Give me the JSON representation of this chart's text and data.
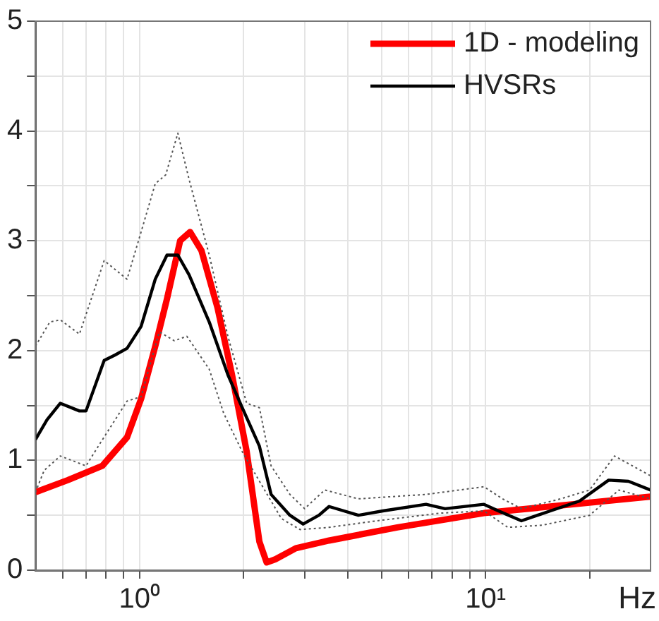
{
  "chart_data": {
    "type": "line",
    "xlabel": "Hz",
    "log": "x",
    "xlim": [
      0.5,
      30
    ],
    "xticks": [
      {
        "value": 0.6,
        "label": null
      },
      {
        "value": 0.7,
        "label": null
      },
      {
        "value": 0.8,
        "label": null
      },
      {
        "value": 0.9,
        "label": null
      },
      {
        "value": 1,
        "label": "10⁰"
      },
      {
        "value": 2,
        "label": null
      },
      {
        "value": 3,
        "label": null
      },
      {
        "value": 4,
        "label": null
      },
      {
        "value": 5,
        "label": null
      },
      {
        "value": 6,
        "label": null
      },
      {
        "value": 7,
        "label": null
      },
      {
        "value": 8,
        "label": null
      },
      {
        "value": 9,
        "label": null
      },
      {
        "value": 10,
        "label": "10¹"
      },
      {
        "value": 20,
        "label": null
      }
    ],
    "ylim": [
      0,
      5
    ],
    "yticks": [
      0,
      {
        "value": 0.5,
        "label": null
      },
      1,
      {
        "value": 1.5,
        "label": null
      },
      2,
      {
        "value": 2.5,
        "label": null
      },
      3,
      {
        "value": 3.5,
        "label": null
      },
      4,
      {
        "value": 4.5,
        "label": null
      },
      5
    ],
    "grid": true,
    "legend": "top right",
    "marker": "none",
    "series": [
      {
        "name": "1D - modeling",
        "color": "#ff0000",
        "x": [
          0.5,
          0.62,
          0.78,
          0.92,
          1.01,
          1.11,
          1.2,
          1.31,
          1.4,
          1.51,
          1.68,
          1.85,
          2.04,
          2.22,
          2.33,
          2.47,
          2.83,
          3.53,
          5.56,
          9.9,
          30
        ],
        "values": [
          0.71,
          0.82,
          0.95,
          1.21,
          1.56,
          2.04,
          2.47,
          3.0,
          3.08,
          2.91,
          2.39,
          1.78,
          1.08,
          0.26,
          0.07,
          0.1,
          0.2,
          0.27,
          0.39,
          0.52,
          0.67
        ]
      },
      {
        "name": "HVSRs",
        "color": "#000000",
        "x": [
          0.5,
          0.54,
          0.59,
          0.67,
          0.7,
          0.79,
          0.85,
          0.92,
          1.01,
          1.11,
          1.2,
          1.29,
          1.39,
          1.59,
          1.8,
          1.98,
          2.22,
          2.4,
          2.72,
          2.97,
          3.3,
          3.53,
          4.29,
          5.05,
          6.73,
          7.64,
          9.9,
          10.9,
          12.7,
          15.4,
          18.7,
          22.7,
          25.9,
          30
        ],
        "values": [
          1.19,
          1.37,
          1.52,
          1.45,
          1.45,
          1.91,
          1.96,
          2.02,
          2.22,
          2.65,
          2.87,
          2.87,
          2.69,
          2.26,
          1.78,
          1.48,
          1.13,
          0.69,
          0.5,
          0.42,
          0.5,
          0.58,
          0.5,
          0.54,
          0.6,
          0.56,
          0.6,
          0.54,
          0.45,
          0.54,
          0.63,
          0.82,
          0.81,
          0.73
        ]
      },
      {
        "color": "#555555",
        "line_style": "dotted",
        "x": [
          0.5,
          0.55,
          0.59,
          0.67,
          0.79,
          0.92,
          1.01,
          1.11,
          1.19,
          1.29,
          1.39,
          1.59,
          1.8,
          2.04,
          2.22,
          2.4,
          2.72,
          3.0,
          3.43,
          4.29,
          6.73,
          9.9,
          11.2,
          12.7,
          16.5,
          20,
          23.6,
          30
        ],
        "values": [
          2.04,
          2.26,
          2.28,
          2.15,
          2.82,
          2.65,
          3.08,
          3.52,
          3.6,
          3.98,
          3.56,
          2.87,
          2.13,
          1.52,
          1.48,
          0.95,
          0.69,
          0.56,
          0.73,
          0.65,
          0.69,
          0.76,
          0.65,
          0.56,
          0.65,
          0.73,
          1.04,
          0.86
        ]
      },
      {
        "color": "#555555",
        "line_style": "dotted",
        "x": [
          0.5,
          0.53,
          0.59,
          0.7,
          0.76,
          0.92,
          1.01,
          1.14,
          1.26,
          1.37,
          1.59,
          1.75,
          1.98,
          2.25,
          2.57,
          2.91,
          3.53,
          4.86,
          7.42,
          9.9,
          11.6,
          14.6,
          20,
          24.3,
          30
        ],
        "values": [
          0.71,
          0.91,
          1.04,
          0.95,
          1.13,
          1.54,
          1.58,
          2.17,
          2.09,
          2.13,
          1.83,
          1.43,
          1.08,
          0.78,
          0.47,
          0.37,
          0.39,
          0.45,
          0.52,
          0.54,
          0.39,
          0.41,
          0.5,
          0.73,
          0.65
        ]
      }
    ]
  }
}
